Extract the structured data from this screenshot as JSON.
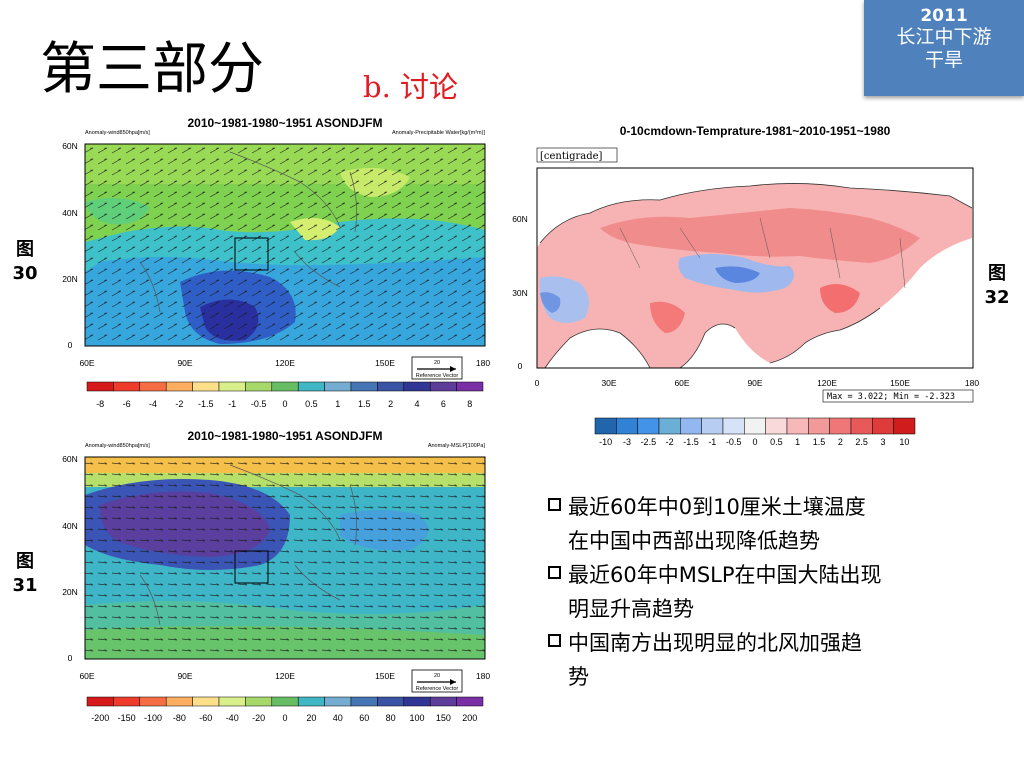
{
  "header": {
    "title": "第三部分",
    "subtitle": "b. 讨论"
  },
  "badge": {
    "year": "2011",
    "line1": "长江中下游",
    "line2": "干旱"
  },
  "fig30": {
    "label_top": "图",
    "label_num": "30",
    "title": "2010~1981-1980~1951 ASONDJFM",
    "left_note": "Anomaly-wind850hpa[m/s]",
    "right_note": "Anomaly-Precipitable Water[kg/(m²m)]",
    "lat_ticks": [
      "60N",
      "40N",
      "20N",
      "0"
    ],
    "lon_ticks": [
      "60E",
      "90E",
      "120E",
      "150E",
      "180"
    ],
    "ref_value": "20",
    "ref_label": "Reference Vector",
    "colorbar_labels": [
      "-8",
      "-6",
      "-4",
      "-2",
      "-1.5",
      "-1",
      "-0.5",
      "0",
      "0.5",
      "1",
      "1.5",
      "2",
      "4",
      "6",
      "8"
    ]
  },
  "fig31": {
    "label_top": "图",
    "label_num": "31",
    "title": "2010~1981-1980~1951 ASONDJFM",
    "left_note": "Anomaly-wind850hpa[m/s]",
    "right_note": "Anomaly-MSLP[100Pa]",
    "lat_ticks": [
      "60N",
      "40N",
      "20N",
      "0"
    ],
    "lon_ticks": [
      "60E",
      "90E",
      "120E",
      "150E",
      "180"
    ],
    "ref_value": "20",
    "ref_label": "Reference Vector",
    "colorbar_labels": [
      "-200",
      "-150",
      "-100",
      "-80",
      "-60",
      "-40",
      "-20",
      "0",
      "20",
      "40",
      "60",
      "80",
      "100",
      "150",
      "200"
    ]
  },
  "fig32": {
    "label_top": "图",
    "label_num": "32",
    "title": "0-10cmdown-Temprature-1981~2010-1951~1980",
    "unit": "[centigrade]",
    "lat_ticks": [
      "60N",
      "30N",
      "0"
    ],
    "lon_ticks": [
      "0",
      "30E",
      "60E",
      "90E",
      "120E",
      "150E",
      "180"
    ],
    "maxmin": "Max = 3.022; Min = -2.323",
    "colorbar_labels": [
      "-10",
      "-3",
      "-2.5",
      "-2",
      "-1.5",
      "-1",
      "-0.5",
      "0",
      "0.5",
      "1",
      "1.5",
      "2",
      "2.5",
      "3",
      "10"
    ]
  },
  "bullets": [
    {
      "line1": "最近60年中0到10厘米土壤温度",
      "line2": "在中国中西部出现降低趋势"
    },
    {
      "line1": "最近60年中MSLP在中国大陆出现",
      "line2": "明显升高趋势"
    },
    {
      "line1": "中国南方出现明显的北风加强趋",
      "line2": "势"
    }
  ],
  "colors": {
    "rainbow": [
      "#d7191c",
      "#ef3b2c",
      "#f46d43",
      "#fdae61",
      "#fee08b",
      "#d9ef8b",
      "#a6d96a",
      "#66bd63",
      "#41b6c4",
      "#74add1",
      "#4575b4",
      "#3a53a4",
      "#313695",
      "#5e3c99",
      "#7b2fa6"
    ],
    "diverging": [
      "#2166ac",
      "#3182d5",
      "#4393e8",
      "#6baed6",
      "#92b8ef",
      "#b7cdf2",
      "#d6e2f7",
      "#f2f2f2",
      "#f9d9d9",
      "#f6b8b8",
      "#f29999",
      "#ef7777",
      "#e85a5a",
      "#de3b3b",
      "#d01c1c"
    ],
    "badge": "#4f81bd",
    "accent": "#e31b23"
  }
}
